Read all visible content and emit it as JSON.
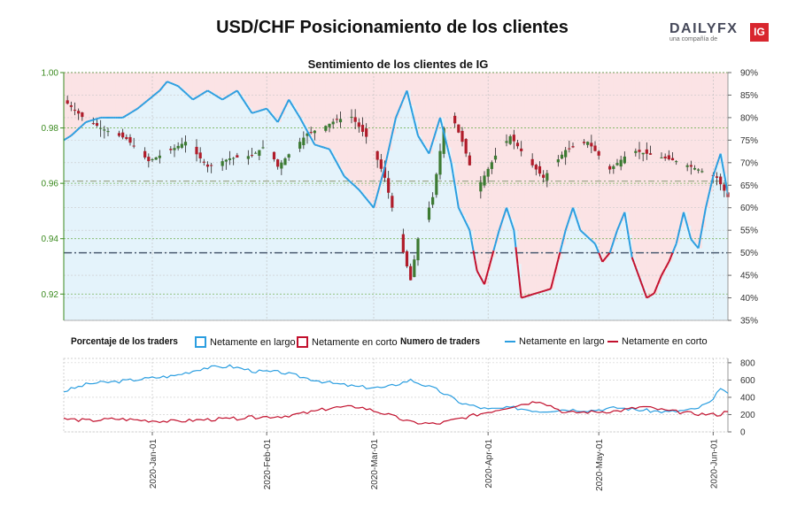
{
  "title": "USD/CHF Posicionamiento de los clientes",
  "subtitle": "Sentimiento de los clientes de IG",
  "logo": {
    "brand": "DAILYFX",
    "tagline": "una compañía de",
    "badge": "IG"
  },
  "legend": {
    "pct_header": "Porcentaje de los traders",
    "pct_long": "Netamente en largo",
    "pct_short": "Netamente en corto",
    "num_header": "Numero de traders",
    "num_long": "Netamente en largo",
    "num_short": "Netamente en corto"
  },
  "colors": {
    "long": "#2b9ee0",
    "short": "#c2102d",
    "long_bg": "#e4f3fb",
    "short_bg": "#fbe3e5",
    "axis_left": "#3a8a1e",
    "bull_candle": "#3c7a32",
    "bear_candle": "#b01c2a"
  },
  "chart_data": [
    {
      "type": "candlestick",
      "pair": "USD/CHF",
      "left_axis": {
        "ticks": [
          "1.00",
          "0.98",
          "0.96",
          "0.94",
          "0.92"
        ],
        "range": [
          0.9105,
          1.0
        ]
      },
      "right_axis": {
        "ticks": [
          "90%",
          "85%",
          "80%",
          "75%",
          "70%",
          "65%",
          "60%",
          "55%",
          "50%",
          "45%",
          "40%",
          "35%"
        ],
        "range": [
          35,
          90
        ]
      },
      "x_ticks": [
        "2020-Jan-01",
        "2020-Feb-01",
        "2020-Mar-01",
        "2020-Apr-01",
        "2020-May-01",
        "2020-Jun-01"
      ],
      "x_range": [
        "2019-12-08",
        "2020-06-05"
      ],
      "reference_lines": {
        "price": 0.9608,
        "percent": 50
      },
      "close_anchors": [
        [
          "2019-12-08",
          0.99
        ],
        [
          "2019-12-13",
          0.984
        ],
        [
          "2019-12-18",
          0.98
        ],
        [
          "2019-12-25",
          0.976
        ],
        [
          "2019-12-31",
          0.968
        ],
        [
          "2020-01-06",
          0.972
        ],
        [
          "2020-01-10",
          0.975
        ],
        [
          "2020-01-16",
          0.966
        ],
        [
          "2020-01-22",
          0.969
        ],
        [
          "2020-01-28",
          0.97
        ],
        [
          "2020-02-01",
          0.974
        ],
        [
          "2020-02-04",
          0.966
        ],
        [
          "2020-02-08",
          0.972
        ],
        [
          "2020-02-12",
          0.978
        ],
        [
          "2020-02-16",
          0.98
        ],
        [
          "2020-02-20",
          0.983
        ],
        [
          "2020-02-24",
          0.984
        ],
        [
          "2020-02-29",
          0.975
        ],
        [
          "2020-03-04",
          0.962
        ],
        [
          "2020-03-09",
          0.935
        ],
        [
          "2020-03-11",
          0.925
        ],
        [
          "2020-03-13",
          0.94
        ],
        [
          "2020-03-17",
          0.955
        ],
        [
          "2020-03-20",
          0.98
        ],
        [
          "2020-03-22",
          0.985
        ],
        [
          "2020-03-25",
          0.975
        ],
        [
          "2020-03-29",
          0.958
        ],
        [
          "2020-04-03",
          0.97
        ],
        [
          "2020-04-07",
          0.977
        ],
        [
          "2020-04-12",
          0.968
        ],
        [
          "2020-04-16",
          0.962
        ],
        [
          "2020-04-22",
          0.972
        ],
        [
          "2020-04-28",
          0.975
        ],
        [
          "2020-05-04",
          0.965
        ],
        [
          "2020-05-10",
          0.972
        ],
        [
          "2020-05-16",
          0.97
        ],
        [
          "2020-05-22",
          0.968
        ],
        [
          "2020-05-28",
          0.965
        ],
        [
          "2020-06-02",
          0.962
        ],
        [
          "2020-06-05",
          0.955
        ]
      ],
      "net_long_pct_anchors": [
        [
          "2019-12-08",
          75
        ],
        [
          "2019-12-10",
          76
        ],
        [
          "2019-12-14",
          79
        ],
        [
          "2019-12-18",
          80
        ],
        [
          "2019-12-24",
          80
        ],
        [
          "2019-12-28",
          82
        ],
        [
          "2019-12-31",
          84
        ],
        [
          "2020-01-03",
          86
        ],
        [
          "2020-01-05",
          88
        ],
        [
          "2020-01-08",
          87
        ],
        [
          "2020-01-12",
          84
        ],
        [
          "2020-01-16",
          86
        ],
        [
          "2020-01-20",
          84
        ],
        [
          "2020-01-24",
          86
        ],
        [
          "2020-01-28",
          81
        ],
        [
          "2020-02-01",
          82
        ],
        [
          "2020-02-04",
          79
        ],
        [
          "2020-02-07",
          84
        ],
        [
          "2020-02-10",
          80
        ],
        [
          "2020-02-14",
          74
        ],
        [
          "2020-02-18",
          73
        ],
        [
          "2020-02-22",
          67
        ],
        [
          "2020-02-26",
          64
        ],
        [
          "2020-03-01",
          60
        ],
        [
          "2020-03-04",
          69
        ],
        [
          "2020-03-07",
          80
        ],
        [
          "2020-03-10",
          86
        ],
        [
          "2020-03-13",
          76
        ],
        [
          "2020-03-16",
          72
        ],
        [
          "2020-03-19",
          80
        ],
        [
          "2020-03-22",
          70
        ],
        [
          "2020-03-24",
          60
        ],
        [
          "2020-03-27",
          55
        ],
        [
          "2020-03-29",
          46
        ],
        [
          "2020-03-31",
          43
        ],
        [
          "2020-04-02",
          49
        ],
        [
          "2020-04-04",
          55
        ],
        [
          "2020-04-06",
          60
        ],
        [
          "2020-04-08",
          55
        ],
        [
          "2020-04-10",
          40
        ],
        [
          "2020-04-14",
          41
        ],
        [
          "2020-04-18",
          42
        ],
        [
          "2020-04-22",
          55
        ],
        [
          "2020-04-24",
          60
        ],
        [
          "2020-04-26",
          55
        ],
        [
          "2020-04-30",
          52
        ],
        [
          "2020-05-02",
          48
        ],
        [
          "2020-05-04",
          50
        ],
        [
          "2020-05-06",
          55
        ],
        [
          "2020-05-08",
          59
        ],
        [
          "2020-05-10",
          49
        ],
        [
          "2020-05-14",
          40
        ],
        [
          "2020-05-16",
          41
        ],
        [
          "2020-05-18",
          45
        ],
        [
          "2020-05-20",
          48
        ],
        [
          "2020-05-22",
          52
        ],
        [
          "2020-05-24",
          59
        ],
        [
          "2020-05-26",
          53
        ],
        [
          "2020-05-28",
          51
        ],
        [
          "2020-05-30",
          60
        ],
        [
          "2020-06-01",
          67
        ],
        [
          "2020-06-03",
          72
        ],
        [
          "2020-06-05",
          63
        ]
      ]
    },
    {
      "type": "line",
      "title": "Numero de traders",
      "y_ticks": [
        "800",
        "600",
        "400",
        "200",
        "0"
      ],
      "ylim": [
        0,
        850
      ],
      "series": [
        {
          "name": "Netamente en largo",
          "anchors": [
            [
              "2019-12-08",
              470
            ],
            [
              "2019-12-15",
              560
            ],
            [
              "2019-12-22",
              580
            ],
            [
              "2019-12-31",
              620
            ],
            [
              "2020-01-07",
              650
            ],
            [
              "2020-01-15",
              740
            ],
            [
              "2020-01-22",
              760
            ],
            [
              "2020-01-29",
              700
            ],
            [
              "2020-02-05",
              690
            ],
            [
              "2020-02-12",
              620
            ],
            [
              "2020-02-19",
              560
            ],
            [
              "2020-02-26",
              520
            ],
            [
              "2020-03-04",
              510
            ],
            [
              "2020-03-11",
              600
            ],
            [
              "2020-03-18",
              490
            ],
            [
              "2020-03-25",
              330
            ],
            [
              "2020-04-01",
              260
            ],
            [
              "2020-04-08",
              280
            ],
            [
              "2020-04-15",
              240
            ],
            [
              "2020-04-22",
              260
            ],
            [
              "2020-04-29",
              250
            ],
            [
              "2020-05-06",
              280
            ],
            [
              "2020-05-13",
              250
            ],
            [
              "2020-05-20",
              230
            ],
            [
              "2020-05-27",
              260
            ],
            [
              "2020-06-01",
              360
            ],
            [
              "2020-06-03",
              520
            ],
            [
              "2020-06-05",
              430
            ]
          ]
        },
        {
          "name": "Netamente en corto",
          "anchors": [
            [
              "2019-12-08",
              150
            ],
            [
              "2019-12-15",
              130
            ],
            [
              "2019-12-22",
              150
            ],
            [
              "2019-12-31",
              130
            ],
            [
              "2020-01-07",
              120
            ],
            [
              "2020-01-15",
              140
            ],
            [
              "2020-01-22",
              150
            ],
            [
              "2020-01-29",
              170
            ],
            [
              "2020-02-05",
              180
            ],
            [
              "2020-02-12",
              220
            ],
            [
              "2020-02-19",
              280
            ],
            [
              "2020-02-26",
              290
            ],
            [
              "2020-03-04",
              210
            ],
            [
              "2020-03-11",
              110
            ],
            [
              "2020-03-18",
              90
            ],
            [
              "2020-03-25",
              160
            ],
            [
              "2020-04-01",
              230
            ],
            [
              "2020-04-08",
              300
            ],
            [
              "2020-04-15",
              360
            ],
            [
              "2020-04-22",
              220
            ],
            [
              "2020-04-29",
              230
            ],
            [
              "2020-05-06",
              240
            ],
            [
              "2020-05-13",
              290
            ],
            [
              "2020-05-20",
              240
            ],
            [
              "2020-05-27",
              210
            ],
            [
              "2020-06-01",
              200
            ],
            [
              "2020-06-03",
              200
            ],
            [
              "2020-06-05",
              250
            ]
          ]
        }
      ]
    }
  ]
}
